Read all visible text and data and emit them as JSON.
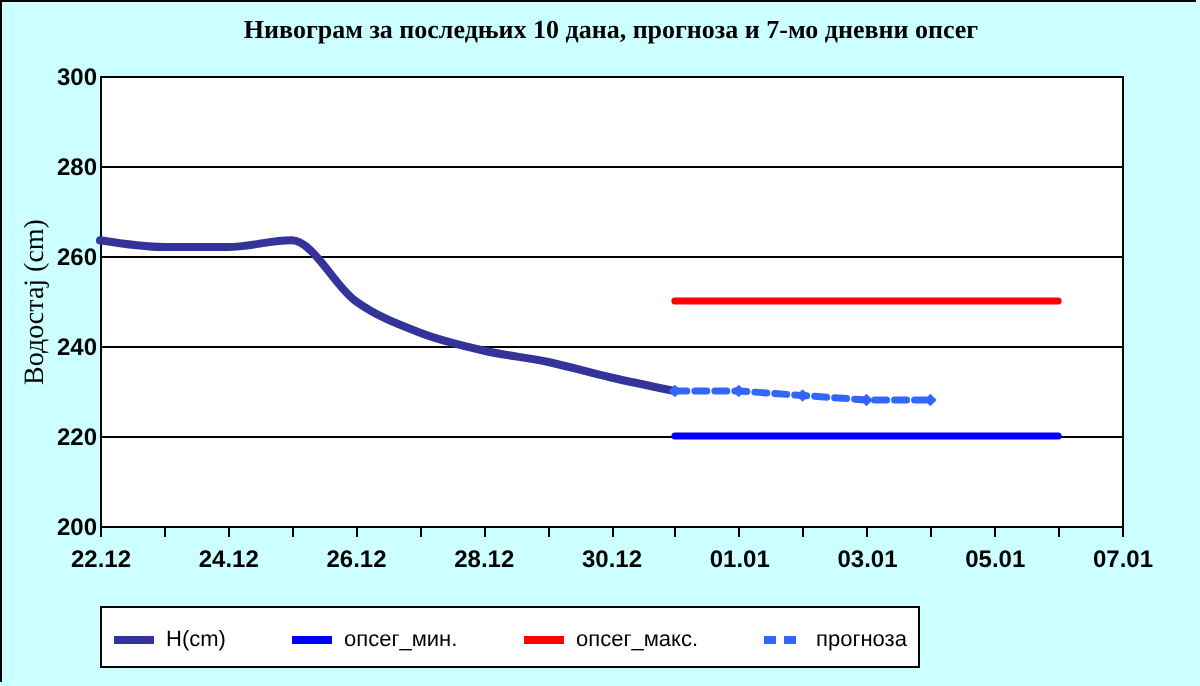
{
  "chart_data": {
    "type": "line",
    "title": "Нивограм за последњих 10 дана, прогноза и 7-мо дневни опсег",
    "ylabel": "Водостај (cm)",
    "categories": [
      "22.12",
      null,
      "24.12",
      null,
      "26.12",
      null,
      "28.12",
      null,
      "30.12",
      null,
      "01.01",
      null,
      "03.01",
      null,
      "05.01",
      null,
      "07.01"
    ],
    "ylim": [
      200,
      300
    ],
    "yticks": [
      200,
      220,
      240,
      260,
      280,
      300
    ],
    "grid": "y",
    "legend": "bottom",
    "series": [
      {
        "name": "H(cm)",
        "color": "#333399",
        "line_style": "solid",
        "values": [
          263.5,
          262,
          262,
          263.5,
          250,
          243,
          239,
          236.5,
          233,
          230,
          null,
          null,
          null,
          null,
          null,
          null,
          null
        ]
      },
      {
        "name": "опсег_мин.",
        "color": "#0000ff",
        "line_style": "solid",
        "values": [
          null,
          null,
          null,
          null,
          null,
          null,
          null,
          null,
          null,
          220,
          220,
          220,
          220,
          220,
          220,
          220,
          null
        ]
      },
      {
        "name": "опсег_макс.",
        "color": "#ff0000",
        "line_style": "solid",
        "values": [
          null,
          null,
          null,
          null,
          null,
          null,
          null,
          null,
          null,
          250,
          250,
          250,
          250,
          250,
          250,
          250,
          null
        ]
      },
      {
        "name": "прогноза",
        "color": "#3366ff",
        "line_style": "dashed",
        "marker": "diamond",
        "values": [
          null,
          null,
          null,
          null,
          null,
          null,
          null,
          null,
          null,
          230,
          230,
          229,
          228,
          228,
          null,
          null,
          null
        ]
      }
    ]
  }
}
